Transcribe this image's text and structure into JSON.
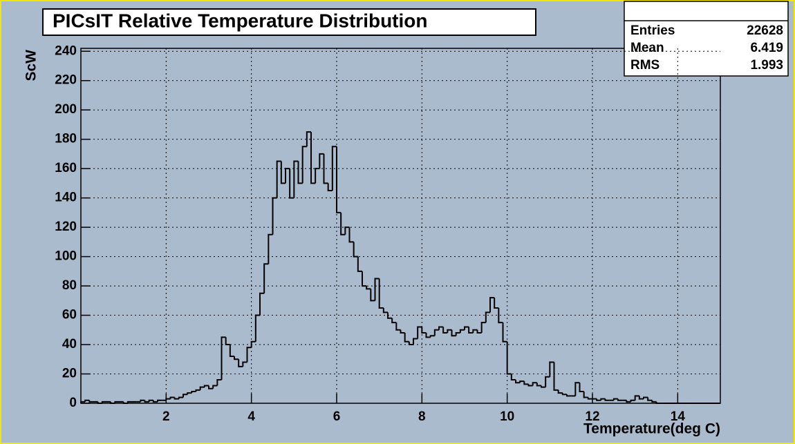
{
  "chart_data": {
    "type": "histogram",
    "title": "PICsIT Relative Temperature Distribution",
    "x_label": "Temperature(deg C)",
    "y_label": "ScW",
    "color": "#000000",
    "grid": true,
    "stats": [
      {
        "label": "Entries",
        "value": 22628
      },
      {
        "label": "Mean",
        "value": 6.419
      },
      {
        "label": "RMS",
        "value": 1.993
      }
    ],
    "xlim": [
      0,
      15
    ],
    "ylim": [
      0,
      242
    ],
    "xticks": [
      2,
      4,
      6,
      8,
      10,
      12,
      14
    ],
    "yticks": [
      0,
      20,
      40,
      60,
      80,
      100,
      120,
      140,
      160,
      180,
      200,
      220,
      240
    ],
    "bins": [
      0,
      0.1,
      0.2,
      0.3,
      0.4,
      0.5,
      0.6,
      0.7,
      0.8,
      0.9,
      1,
      1.1,
      1.2,
      1.3,
      1.4,
      1.5,
      1.6,
      1.7,
      1.8,
      1.9,
      2,
      2.1,
      2.2,
      2.3,
      2.4,
      2.5,
      2.6,
      2.7,
      2.8,
      2.9,
      3,
      3.1,
      3.2,
      3.3,
      3.4,
      3.5,
      3.6,
      3.7,
      3.8,
      3.9,
      4,
      4.1,
      4.2,
      4.3,
      4.4,
      4.5,
      4.6,
      4.7,
      4.8,
      4.9,
      5,
      5.1,
      5.2,
      5.3,
      5.4,
      5.5,
      5.6,
      5.7,
      5.8,
      5.9,
      6,
      6.1,
      6.2,
      6.3,
      6.4,
      6.5,
      6.6,
      6.7,
      6.8,
      6.9,
      7,
      7.1,
      7.2,
      7.3,
      7.4,
      7.5,
      7.6,
      7.7,
      7.8,
      7.9,
      8,
      8.1,
      8.2,
      8.3,
      8.4,
      8.5,
      8.6,
      8.7,
      8.8,
      8.9,
      9,
      9.1,
      9.2,
      9.3,
      9.4,
      9.5,
      9.6,
      9.7,
      9.8,
      9.9,
      10,
      10.1,
      10.2,
      10.3,
      10.4,
      10.5,
      10.6,
      10.7,
      10.8,
      10.9,
      11,
      11.1,
      11.2,
      11.3,
      11.4,
      11.5,
      11.6,
      11.7,
      11.8,
      11.9,
      12,
      12.1,
      12.2,
      12.3,
      12.4,
      12.5,
      12.6,
      12.7,
      12.8,
      12.9,
      13,
      13.1,
      13.2,
      13.3,
      13.4,
      13.5,
      13.6,
      13.7,
      13.8,
      13.9,
      14,
      14.1,
      14.2,
      14.3,
      14.4,
      14.5,
      14.6,
      14.7,
      14.8,
      14.9,
      15
    ],
    "counts": [
      1,
      2,
      1,
      1,
      0,
      1,
      1,
      0,
      1,
      1,
      0,
      1,
      1,
      1,
      2,
      1,
      2,
      1,
      2,
      2,
      3,
      4,
      3,
      4,
      6,
      7,
      8,
      9,
      11,
      12,
      10,
      12,
      16,
      45,
      40,
      32,
      30,
      25,
      28,
      38,
      42,
      60,
      75,
      95,
      115,
      140,
      165,
      150,
      160,
      140,
      165,
      150,
      175,
      185,
      150,
      160,
      170,
      150,
      145,
      175,
      130,
      115,
      120,
      110,
      100,
      90,
      80,
      78,
      70,
      85,
      65,
      62,
      58,
      55,
      50,
      48,
      42,
      40,
      44,
      52,
      48,
      45,
      46,
      50,
      52,
      48,
      50,
      46,
      48,
      50,
      52,
      48,
      50,
      48,
      55,
      62,
      72,
      65,
      55,
      42,
      20,
      16,
      14,
      15,
      13,
      12,
      14,
      12,
      11,
      18,
      28,
      9,
      7,
      6,
      5,
      5,
      14,
      8,
      4,
      3,
      3,
      2,
      3,
      2,
      2,
      3,
      2,
      2,
      1,
      2,
      5,
      3,
      4,
      2,
      1,
      0,
      0,
      0,
      0,
      0,
      0,
      0,
      0,
      0,
      0,
      0,
      0,
      0,
      0,
      0
    ]
  }
}
